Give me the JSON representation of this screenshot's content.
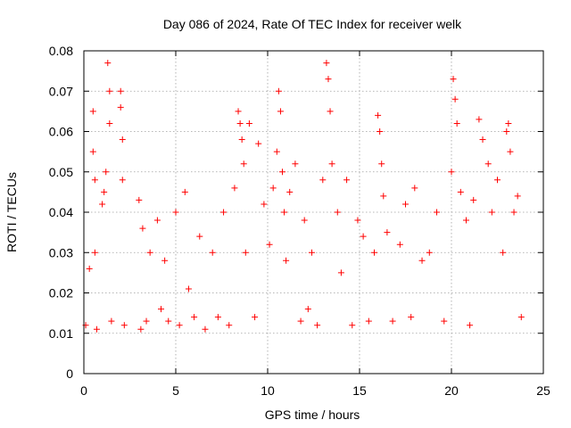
{
  "chart_data": {
    "type": "scatter",
    "title": "Day 086 of 2024, Rate Of TEC Index for receiver welk",
    "xlabel": "GPS time / hours",
    "ylabel": "ROTI / TECUs",
    "xlim": [
      0,
      25
    ],
    "ylim": [
      0,
      0.08
    ],
    "xticks": [
      0,
      5,
      10,
      15,
      20,
      25
    ],
    "xtick_labels": [
      "0",
      "5",
      "10",
      "15",
      "20",
      "25"
    ],
    "yticks": [
      0,
      0.01,
      0.02,
      0.03,
      0.04,
      0.05,
      0.06,
      0.07,
      0.08
    ],
    "ytick_labels": [
      "0",
      "0.01",
      "0.02",
      "0.03",
      "0.04",
      "0.05",
      "0.06",
      "0.07",
      "0.08"
    ],
    "grid": true,
    "marker": "+",
    "color": "#ff0000",
    "series": [
      {
        "name": "ROTI",
        "x": [
          0.1,
          0.3,
          0.5,
          0.5,
          0.6,
          0.6,
          0.7,
          1.0,
          1.1,
          1.2,
          1.3,
          1.4,
          1.4,
          1.5,
          2.0,
          2.0,
          2.1,
          2.1,
          2.2,
          3.0,
          3.1,
          3.2,
          3.4,
          3.6,
          4.0,
          4.2,
          4.4,
          4.6,
          5.0,
          5.2,
          5.5,
          5.7,
          6.0,
          6.3,
          6.6,
          7.0,
          7.3,
          7.6,
          7.9,
          8.2,
          8.4,
          8.5,
          8.6,
          8.7,
          8.8,
          9.0,
          9.3,
          9.5,
          9.8,
          10.1,
          10.3,
          10.5,
          10.6,
          10.7,
          10.8,
          10.9,
          11.0,
          11.2,
          11.5,
          11.8,
          12.0,
          12.2,
          12.4,
          12.7,
          13.0,
          13.2,
          13.3,
          13.4,
          13.5,
          13.8,
          14.0,
          14.3,
          14.6,
          14.9,
          15.2,
          15.5,
          15.8,
          16.0,
          16.1,
          16.2,
          16.3,
          16.5,
          16.8,
          17.2,
          17.5,
          17.8,
          18.0,
          18.4,
          18.8,
          19.2,
          19.6,
          20.0,
          20.1,
          20.2,
          20.3,
          20.5,
          20.8,
          21.0,
          21.2,
          21.5,
          21.7,
          22.0,
          22.2,
          22.5,
          22.8,
          23.0,
          23.1,
          23.2,
          23.4,
          23.6,
          23.8
        ],
        "y": [
          0.012,
          0.026,
          0.065,
          0.055,
          0.048,
          0.03,
          0.011,
          0.042,
          0.045,
          0.05,
          0.077,
          0.07,
          0.062,
          0.013,
          0.07,
          0.066,
          0.058,
          0.048,
          0.012,
          0.043,
          0.011,
          0.036,
          0.013,
          0.03,
          0.038,
          0.016,
          0.028,
          0.013,
          0.04,
          0.012,
          0.045,
          0.021,
          0.014,
          0.034,
          0.011,
          0.03,
          0.014,
          0.04,
          0.012,
          0.046,
          0.065,
          0.062,
          0.058,
          0.052,
          0.03,
          0.062,
          0.014,
          0.057,
          0.042,
          0.032,
          0.046,
          0.055,
          0.07,
          0.065,
          0.05,
          0.04,
          0.028,
          0.045,
          0.052,
          0.013,
          0.038,
          0.016,
          0.03,
          0.012,
          0.048,
          0.077,
          0.073,
          0.065,
          0.052,
          0.04,
          0.025,
          0.048,
          0.012,
          0.038,
          0.034,
          0.013,
          0.03,
          0.064,
          0.06,
          0.052,
          0.044,
          0.035,
          0.013,
          0.032,
          0.042,
          0.014,
          0.046,
          0.028,
          0.03,
          0.04,
          0.013,
          0.05,
          0.073,
          0.068,
          0.062,
          0.045,
          0.038,
          0.012,
          0.043,
          0.063,
          0.058,
          0.052,
          0.04,
          0.048,
          0.03,
          0.06,
          0.062,
          0.055,
          0.04,
          0.044,
          0.014
        ]
      }
    ]
  }
}
